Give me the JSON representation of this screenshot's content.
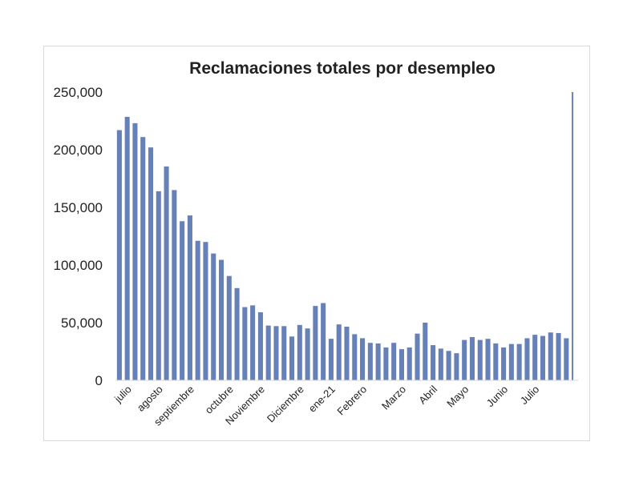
{
  "chart_data": {
    "type": "bar",
    "title": "Reclamaciones totales por desempleo",
    "xlabel": "",
    "ylabel": "",
    "ylim": [
      0,
      250000
    ],
    "yticks": [
      "0",
      "50,000",
      "100,000",
      "150,000",
      "200,000",
      "250,000"
    ],
    "ytick_values": [
      0,
      50000,
      100000,
      150000,
      200000,
      250000
    ],
    "grid": false,
    "legend": "none",
    "color": "#6680b8",
    "x_labels": [
      {
        "label": "julio",
        "index": 1
      },
      {
        "label": "agosto",
        "index": 5
      },
      {
        "label": "septiembre",
        "index": 9
      },
      {
        "label": "octubre",
        "index": 14
      },
      {
        "label": "Noviembre",
        "index": 18
      },
      {
        "label": "Diciembre",
        "index": 23
      },
      {
        "label": "ene-21",
        "index": 27
      },
      {
        "label": "Febrero",
        "index": 31
      },
      {
        "label": "Marzo",
        "index": 36
      },
      {
        "label": "Abril",
        "index": 40
      },
      {
        "label": "Mayo",
        "index": 44
      },
      {
        "label": "Junio",
        "index": 49
      },
      {
        "label": "Julio",
        "index": 53
      }
    ],
    "values": [
      217000,
      228500,
      223000,
      211000,
      202000,
      164000,
      185500,
      165000,
      138000,
      143000,
      121000,
      120000,
      110000,
      104500,
      90500,
      80000,
      63500,
      65000,
      59000,
      47500,
      47000,
      47000,
      38000,
      48000,
      45000,
      64500,
      67000,
      36000,
      48500,
      46500,
      40000,
      36500,
      32500,
      32000,
      28500,
      32500,
      27000,
      28500,
      40500,
      50000,
      30500,
      27500,
      25500,
      23500,
      35000,
      37500,
      35000,
      36000,
      32000,
      28500,
      31500,
      31500,
      36500,
      39500,
      38500,
      41500,
      41000,
      36500,
      250000
    ]
  }
}
